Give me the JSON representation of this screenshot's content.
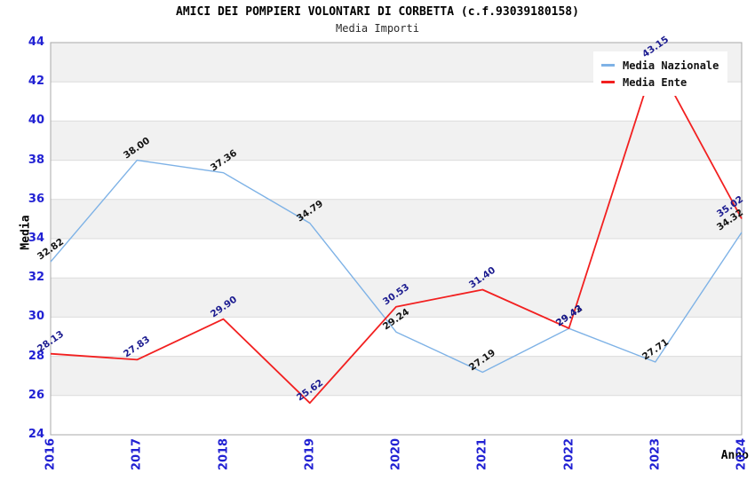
{
  "chart_data": {
    "type": "line",
    "title": "AMICI DEI POMPIERI VOLONTARI DI CORBETTA (c.f.93039180158)",
    "subtitle": "Media Importi",
    "xlabel": "Anno",
    "ylabel": "Media",
    "x": [
      "2016",
      "2017",
      "2018",
      "2019",
      "2020",
      "2021",
      "2022",
      "2023",
      "2024"
    ],
    "ylim": [
      24,
      44
    ],
    "yticks": [
      24,
      26,
      28,
      30,
      32,
      34,
      36,
      38,
      40,
      42,
      44
    ],
    "grid": "horizontal, alternating shaded bands every 2 units",
    "legend_position": "top-right",
    "series": [
      {
        "name": "Media Nazionale",
        "color": "#7EB2E6",
        "label_color": "#141414",
        "values": [
          32.82,
          38.0,
          37.36,
          34.79,
          29.24,
          27.19,
          29.42,
          27.71,
          34.32
        ],
        "labels": [
          "32.82",
          "38.00",
          "37.36",
          "34.79",
          "29.24",
          "27.19",
          "29.42",
          "27.71",
          "34.32"
        ]
      },
      {
        "name": "Media Ente",
        "color": "#F22020",
        "label_color": "#1C1C90",
        "values": [
          28.13,
          27.83,
          29.9,
          25.62,
          30.53,
          31.4,
          29.43,
          43.15,
          35.02
        ],
        "labels": [
          "28.13",
          "27.83",
          "29.90",
          "25.62",
          "30.53",
          "31.40",
          "29.43",
          "43.15",
          "35.02"
        ]
      }
    ],
    "colors": {
      "tick_label": "#2121D3",
      "band": "#F1F1F1",
      "band_alt": "#FFFFFF",
      "grid": "#DCDCDC",
      "plot_border": "#A8A8A8",
      "background": "#FFFFFF"
    }
  }
}
